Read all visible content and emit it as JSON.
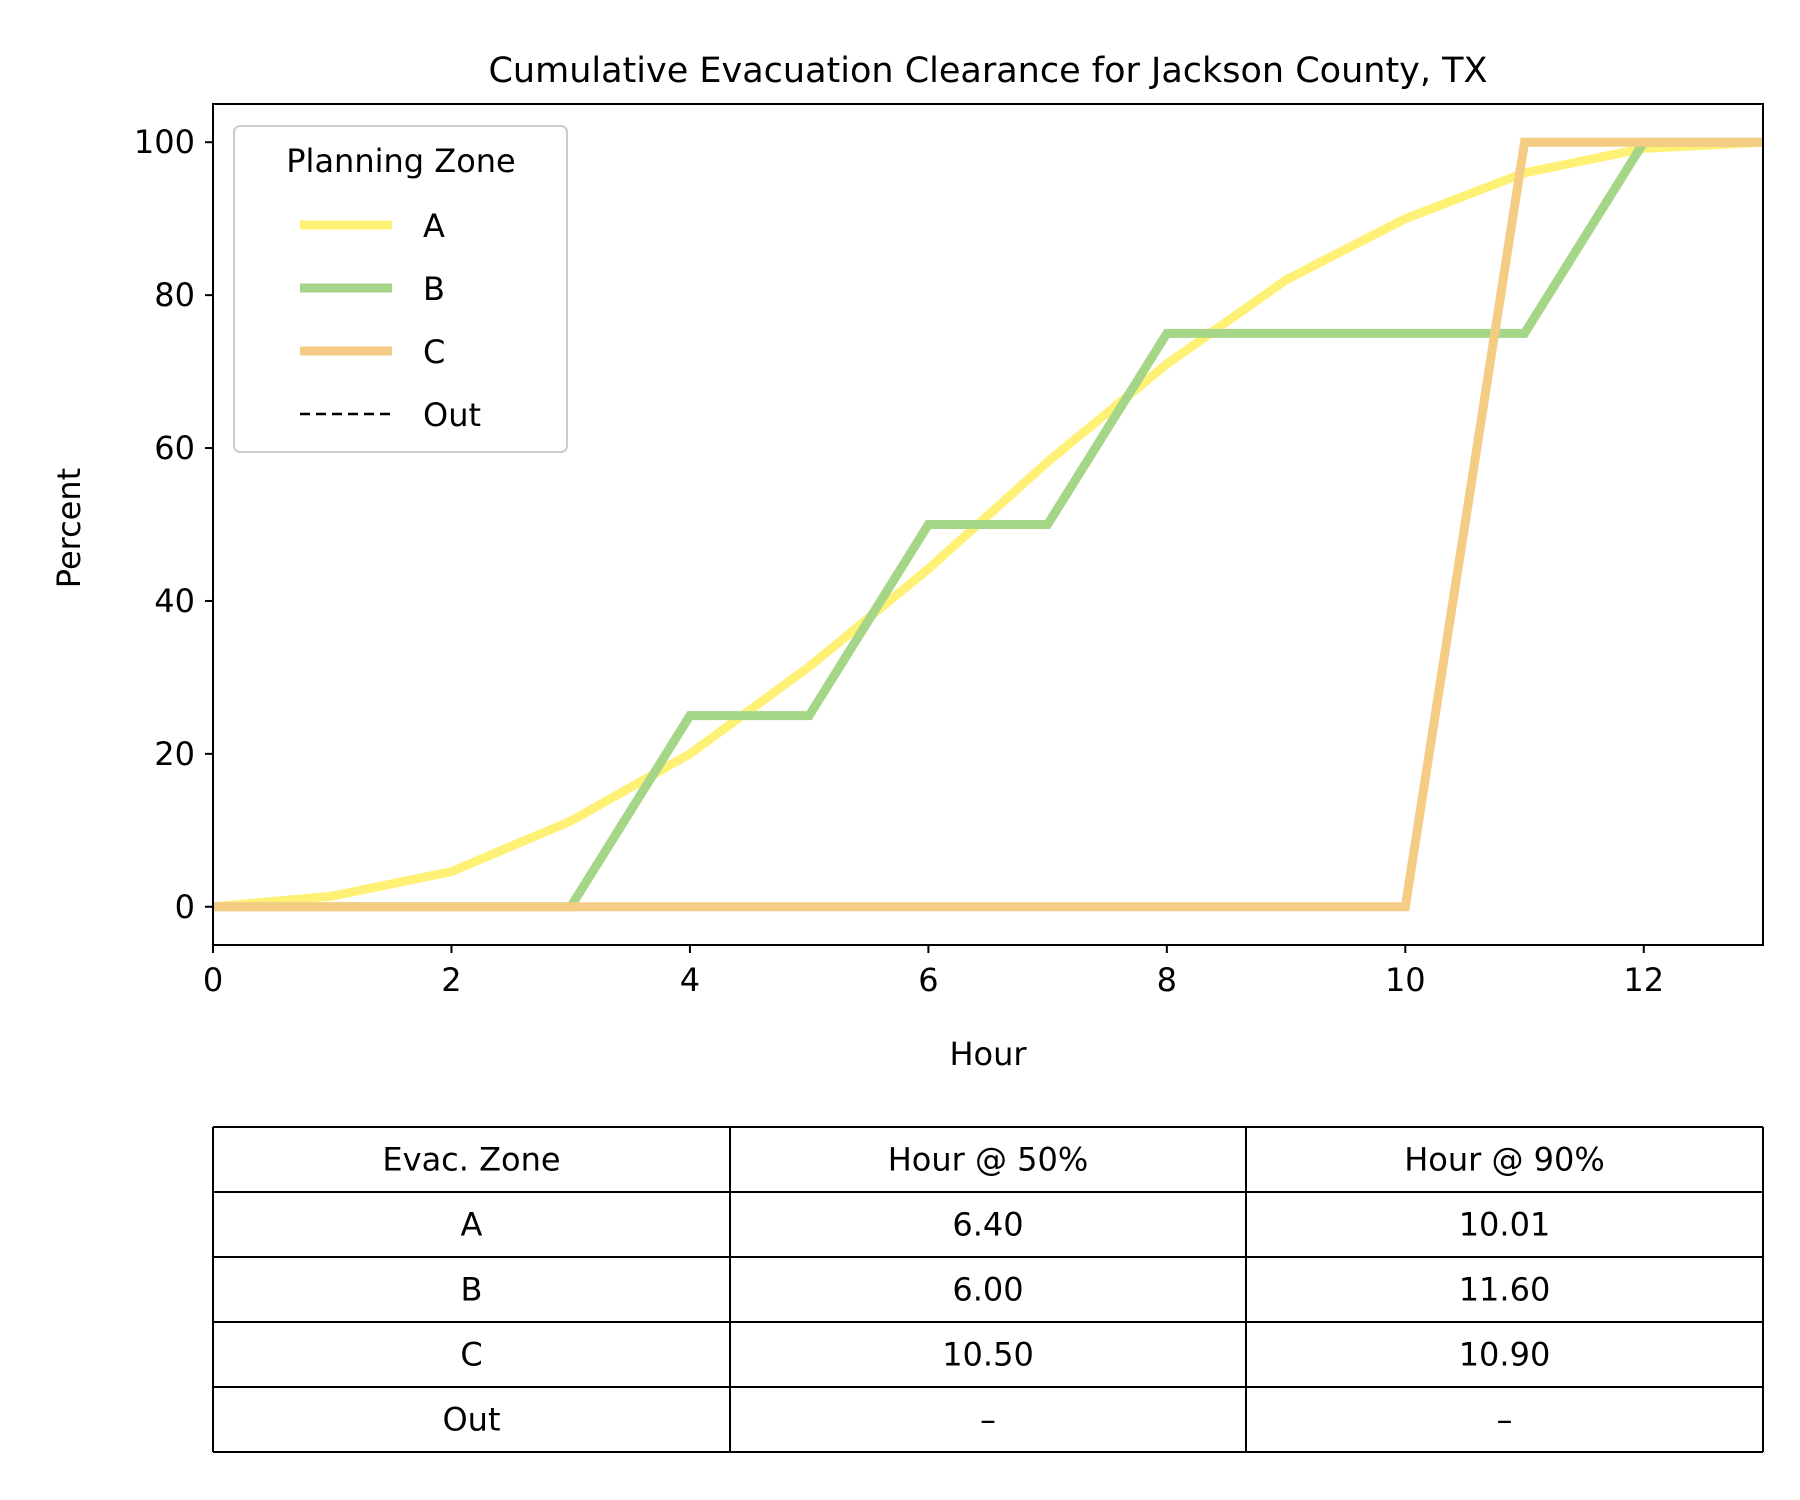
{
  "chart_data": {
    "type": "line",
    "title": "Cumulative Evacuation Clearance for Jackson County, TX",
    "xlabel": "Hour",
    "ylabel": "Percent",
    "xlim": [
      0,
      13
    ],
    "ylim": [
      -5,
      105
    ],
    "xticks": [
      0,
      2,
      4,
      6,
      8,
      10,
      12
    ],
    "yticks": [
      0,
      20,
      40,
      60,
      80,
      100
    ],
    "grid": false,
    "legend": {
      "title": "Planning Zone",
      "placement": "upper-left",
      "entries": [
        {
          "label": "A",
          "color": "#fff176",
          "style": "solid"
        },
        {
          "label": "B",
          "color": "#a5d687",
          "style": "solid"
        },
        {
          "label": "C",
          "color": "#f5cc84",
          "style": "solid"
        },
        {
          "label": "Out",
          "color": "#000000",
          "style": "dashed"
        }
      ]
    },
    "series": [
      {
        "name": "A",
        "color": "#fff176",
        "x": [
          0,
          1,
          2,
          3,
          4,
          5,
          6,
          7,
          8,
          9,
          10,
          11,
          12,
          13
        ],
        "y": [
          0,
          1.4,
          4.6,
          11.2,
          20,
          31.4,
          44.2,
          58.2,
          71,
          82,
          90,
          96,
          99.2,
          100
        ]
      },
      {
        "name": "B",
        "color": "#a5d687",
        "x": [
          0,
          3,
          4,
          5,
          6,
          7,
          8,
          9,
          10,
          11,
          12,
          13
        ],
        "y": [
          0,
          0,
          25,
          25,
          50,
          50,
          75,
          75,
          75,
          75,
          100,
          100
        ]
      },
      {
        "name": "C",
        "color": "#f5cc84",
        "x": [
          0,
          1,
          2,
          3,
          4,
          5,
          6,
          7,
          8,
          9,
          10,
          11,
          12,
          13
        ],
        "y": [
          0,
          0,
          0,
          0,
          0,
          0,
          0,
          0,
          0,
          0,
          0,
          100,
          100,
          100
        ]
      }
    ]
  },
  "table": {
    "headers": [
      "Evac. Zone",
      "Hour @ 50%",
      "Hour @ 90%"
    ],
    "rows": [
      [
        "A",
        "6.40",
        "10.01"
      ],
      [
        "B",
        "6.00",
        "11.60"
      ],
      [
        "C",
        "10.50",
        "10.90"
      ],
      [
        "Out",
        "–",
        "–"
      ]
    ]
  }
}
